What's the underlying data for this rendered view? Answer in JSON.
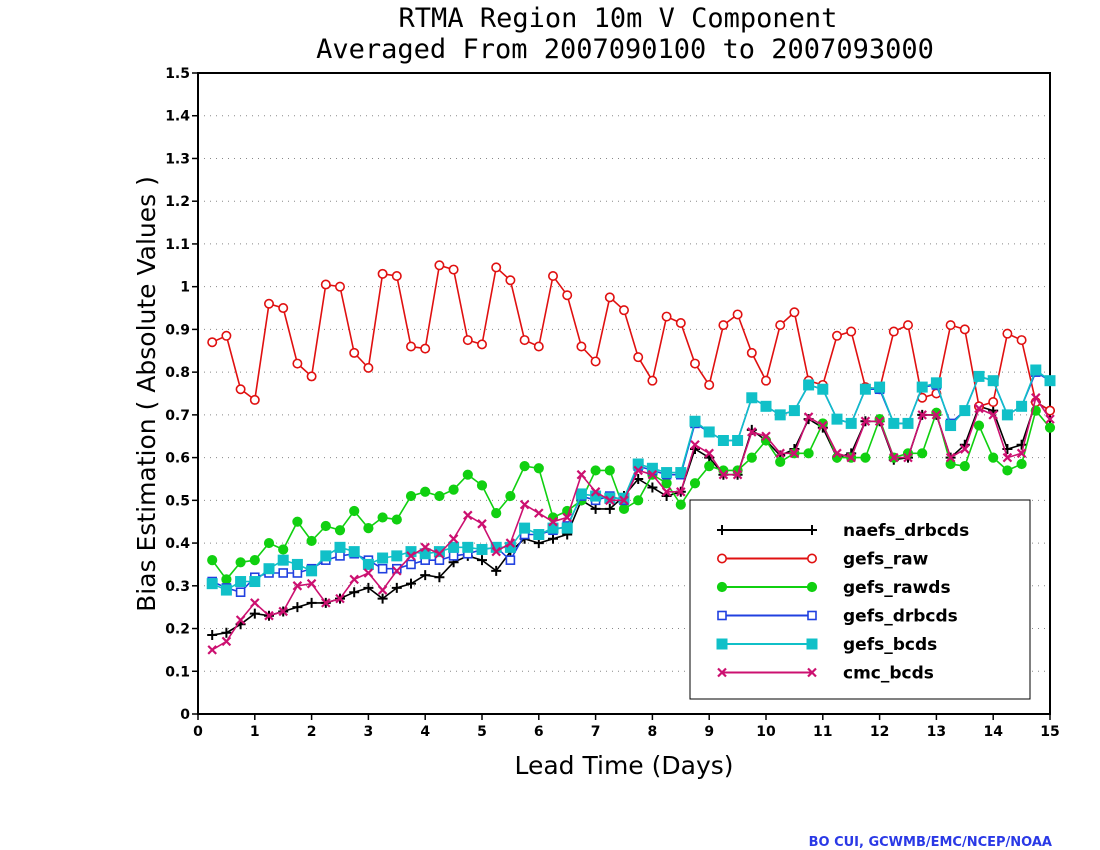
{
  "credit": "BO CUI, GCWMB/EMC/NCEP/NOAA",
  "colors": {
    "naefs_drbcds": "#000000",
    "gefs_raw": "#e01010",
    "gefs_rawds": "#10d010",
    "gefs_drbcds": "#2040e0",
    "gefs_bcds": "#10c0c8",
    "cmc_bcds": "#cc1070",
    "grid": "#888888",
    "credit": "#2a39e6"
  },
  "chart_data": {
    "type": "line",
    "title": [
      "RTMA Region 10m V Component",
      "Averaged From 2007090100 to 2007093000"
    ],
    "xlabel": "Lead Time (Days)",
    "ylabel": "Bias Estimation ( Absolute Values )",
    "xlim": [
      0,
      15
    ],
    "ylim": [
      0,
      1.5
    ],
    "xticks": [
      "0",
      "1",
      "2",
      "3",
      "4",
      "5",
      "6",
      "7",
      "8",
      "9",
      "10",
      "11",
      "12",
      "13",
      "14",
      "15"
    ],
    "yticks": [
      "0",
      "0.1",
      "0.2",
      "0.3",
      "0.4",
      "0.5",
      "0.6",
      "0.7",
      "0.8",
      "0.9",
      "1",
      "1.1",
      "1.2",
      "1.3",
      "1.4",
      "1.5"
    ],
    "grid": "horizontal dotted",
    "legend_position": "lower-right",
    "x_step": 0.25,
    "x_start": 0.25,
    "series": [
      {
        "name": "naefs_drbcds",
        "marker": "plus",
        "values": [
          0.185,
          0.19,
          0.21,
          0.235,
          0.23,
          0.24,
          0.25,
          0.26,
          0.26,
          0.27,
          0.285,
          0.295,
          0.27,
          0.295,
          0.305,
          0.325,
          0.32,
          0.355,
          0.37,
          0.36,
          0.335,
          0.38,
          0.41,
          0.4,
          0.41,
          0.42,
          0.5,
          0.48,
          0.48,
          0.51,
          0.55,
          0.53,
          0.51,
          0.52,
          0.62,
          0.6,
          0.56,
          0.56,
          0.665,
          0.64,
          0.605,
          0.62,
          0.69,
          0.67,
          0.6,
          0.61,
          0.685,
          0.685,
          0.595,
          0.6,
          0.7,
          0.7,
          0.6,
          0.63,
          0.72,
          0.71,
          0.62,
          0.63,
          0.73,
          0.71
        ]
      },
      {
        "name": "gefs_raw",
        "marker": "circle",
        "values": [
          0.87,
          0.885,
          0.76,
          0.735,
          0.96,
          0.95,
          0.82,
          0.79,
          1.005,
          1.0,
          0.845,
          0.81,
          1.03,
          1.025,
          0.86,
          0.855,
          1.05,
          1.04,
          0.875,
          0.865,
          1.045,
          1.015,
          0.875,
          0.86,
          1.025,
          0.98,
          0.86,
          0.825,
          0.975,
          0.945,
          0.835,
          0.78,
          0.93,
          0.915,
          0.82,
          0.77,
          0.91,
          0.935,
          0.845,
          0.78,
          0.91,
          0.94,
          0.78,
          0.77,
          0.885,
          0.895,
          0.765,
          0.76,
          0.895,
          0.91,
          0.74,
          0.75,
          0.91,
          0.9,
          0.72,
          0.73,
          0.89,
          0.875,
          0.73,
          0.71
        ]
      },
      {
        "name": "gefs_rawds",
        "marker": "dot",
        "values": [
          0.36,
          0.315,
          0.355,
          0.36,
          0.4,
          0.385,
          0.45,
          0.405,
          0.44,
          0.43,
          0.475,
          0.435,
          0.46,
          0.455,
          0.51,
          0.52,
          0.51,
          0.525,
          0.56,
          0.535,
          0.47,
          0.51,
          0.58,
          0.575,
          0.46,
          0.475,
          0.5,
          0.57,
          0.57,
          0.48,
          0.5,
          0.56,
          0.54,
          0.49,
          0.54,
          0.58,
          0.57,
          0.57,
          0.6,
          0.64,
          0.59,
          0.61,
          0.61,
          0.68,
          0.6,
          0.6,
          0.6,
          0.69,
          0.6,
          0.61,
          0.61,
          0.705,
          0.585,
          0.58,
          0.675,
          0.6,
          0.57,
          0.585,
          0.71,
          0.67
        ]
      },
      {
        "name": "gefs_drbcds",
        "marker": "square-open",
        "values": [
          0.31,
          0.295,
          0.285,
          0.32,
          0.33,
          0.33,
          0.33,
          0.34,
          0.36,
          0.37,
          0.375,
          0.36,
          0.34,
          0.34,
          0.35,
          0.36,
          0.36,
          0.37,
          0.375,
          0.385,
          0.39,
          0.36,
          0.42,
          0.42,
          0.43,
          0.44,
          0.51,
          0.5,
          0.51,
          0.5,
          0.58,
          0.57,
          0.56,
          0.56,
          0.68,
          0.66,
          0.64,
          0.64,
          0.74,
          0.72,
          0.7,
          0.71,
          0.77,
          0.76,
          0.69,
          0.68,
          0.76,
          0.76,
          0.68,
          0.68,
          0.765,
          0.77,
          0.68,
          0.71,
          0.79,
          0.78,
          0.7,
          0.72,
          0.8,
          0.78
        ]
      },
      {
        "name": "gefs_bcds",
        "marker": "square",
        "values": [
          0.305,
          0.29,
          0.31,
          0.31,
          0.34,
          0.36,
          0.35,
          0.335,
          0.37,
          0.39,
          0.38,
          0.35,
          0.365,
          0.37,
          0.38,
          0.375,
          0.38,
          0.39,
          0.39,
          0.385,
          0.39,
          0.39,
          0.435,
          0.42,
          0.435,
          0.435,
          0.515,
          0.51,
          0.505,
          0.505,
          0.585,
          0.575,
          0.565,
          0.565,
          0.685,
          0.66,
          0.64,
          0.64,
          0.74,
          0.72,
          0.7,
          0.71,
          0.77,
          0.76,
          0.69,
          0.68,
          0.76,
          0.765,
          0.68,
          0.68,
          0.765,
          0.775,
          0.675,
          0.71,
          0.79,
          0.78,
          0.7,
          0.72,
          0.805,
          0.78
        ]
      },
      {
        "name": "cmc_bcds",
        "marker": "x",
        "values": [
          0.15,
          0.17,
          0.22,
          0.26,
          0.23,
          0.24,
          0.3,
          0.305,
          0.26,
          0.27,
          0.315,
          0.33,
          0.29,
          0.335,
          0.37,
          0.39,
          0.375,
          0.41,
          0.465,
          0.445,
          0.38,
          0.4,
          0.49,
          0.47,
          0.45,
          0.46,
          0.56,
          0.52,
          0.5,
          0.5,
          0.57,
          0.56,
          0.52,
          0.52,
          0.63,
          0.61,
          0.56,
          0.56,
          0.66,
          0.65,
          0.61,
          0.61,
          0.695,
          0.675,
          0.61,
          0.6,
          0.685,
          0.685,
          0.6,
          0.6,
          0.7,
          0.7,
          0.6,
          0.62,
          0.715,
          0.7,
          0.6,
          0.61,
          0.74,
          0.69
        ]
      }
    ]
  }
}
